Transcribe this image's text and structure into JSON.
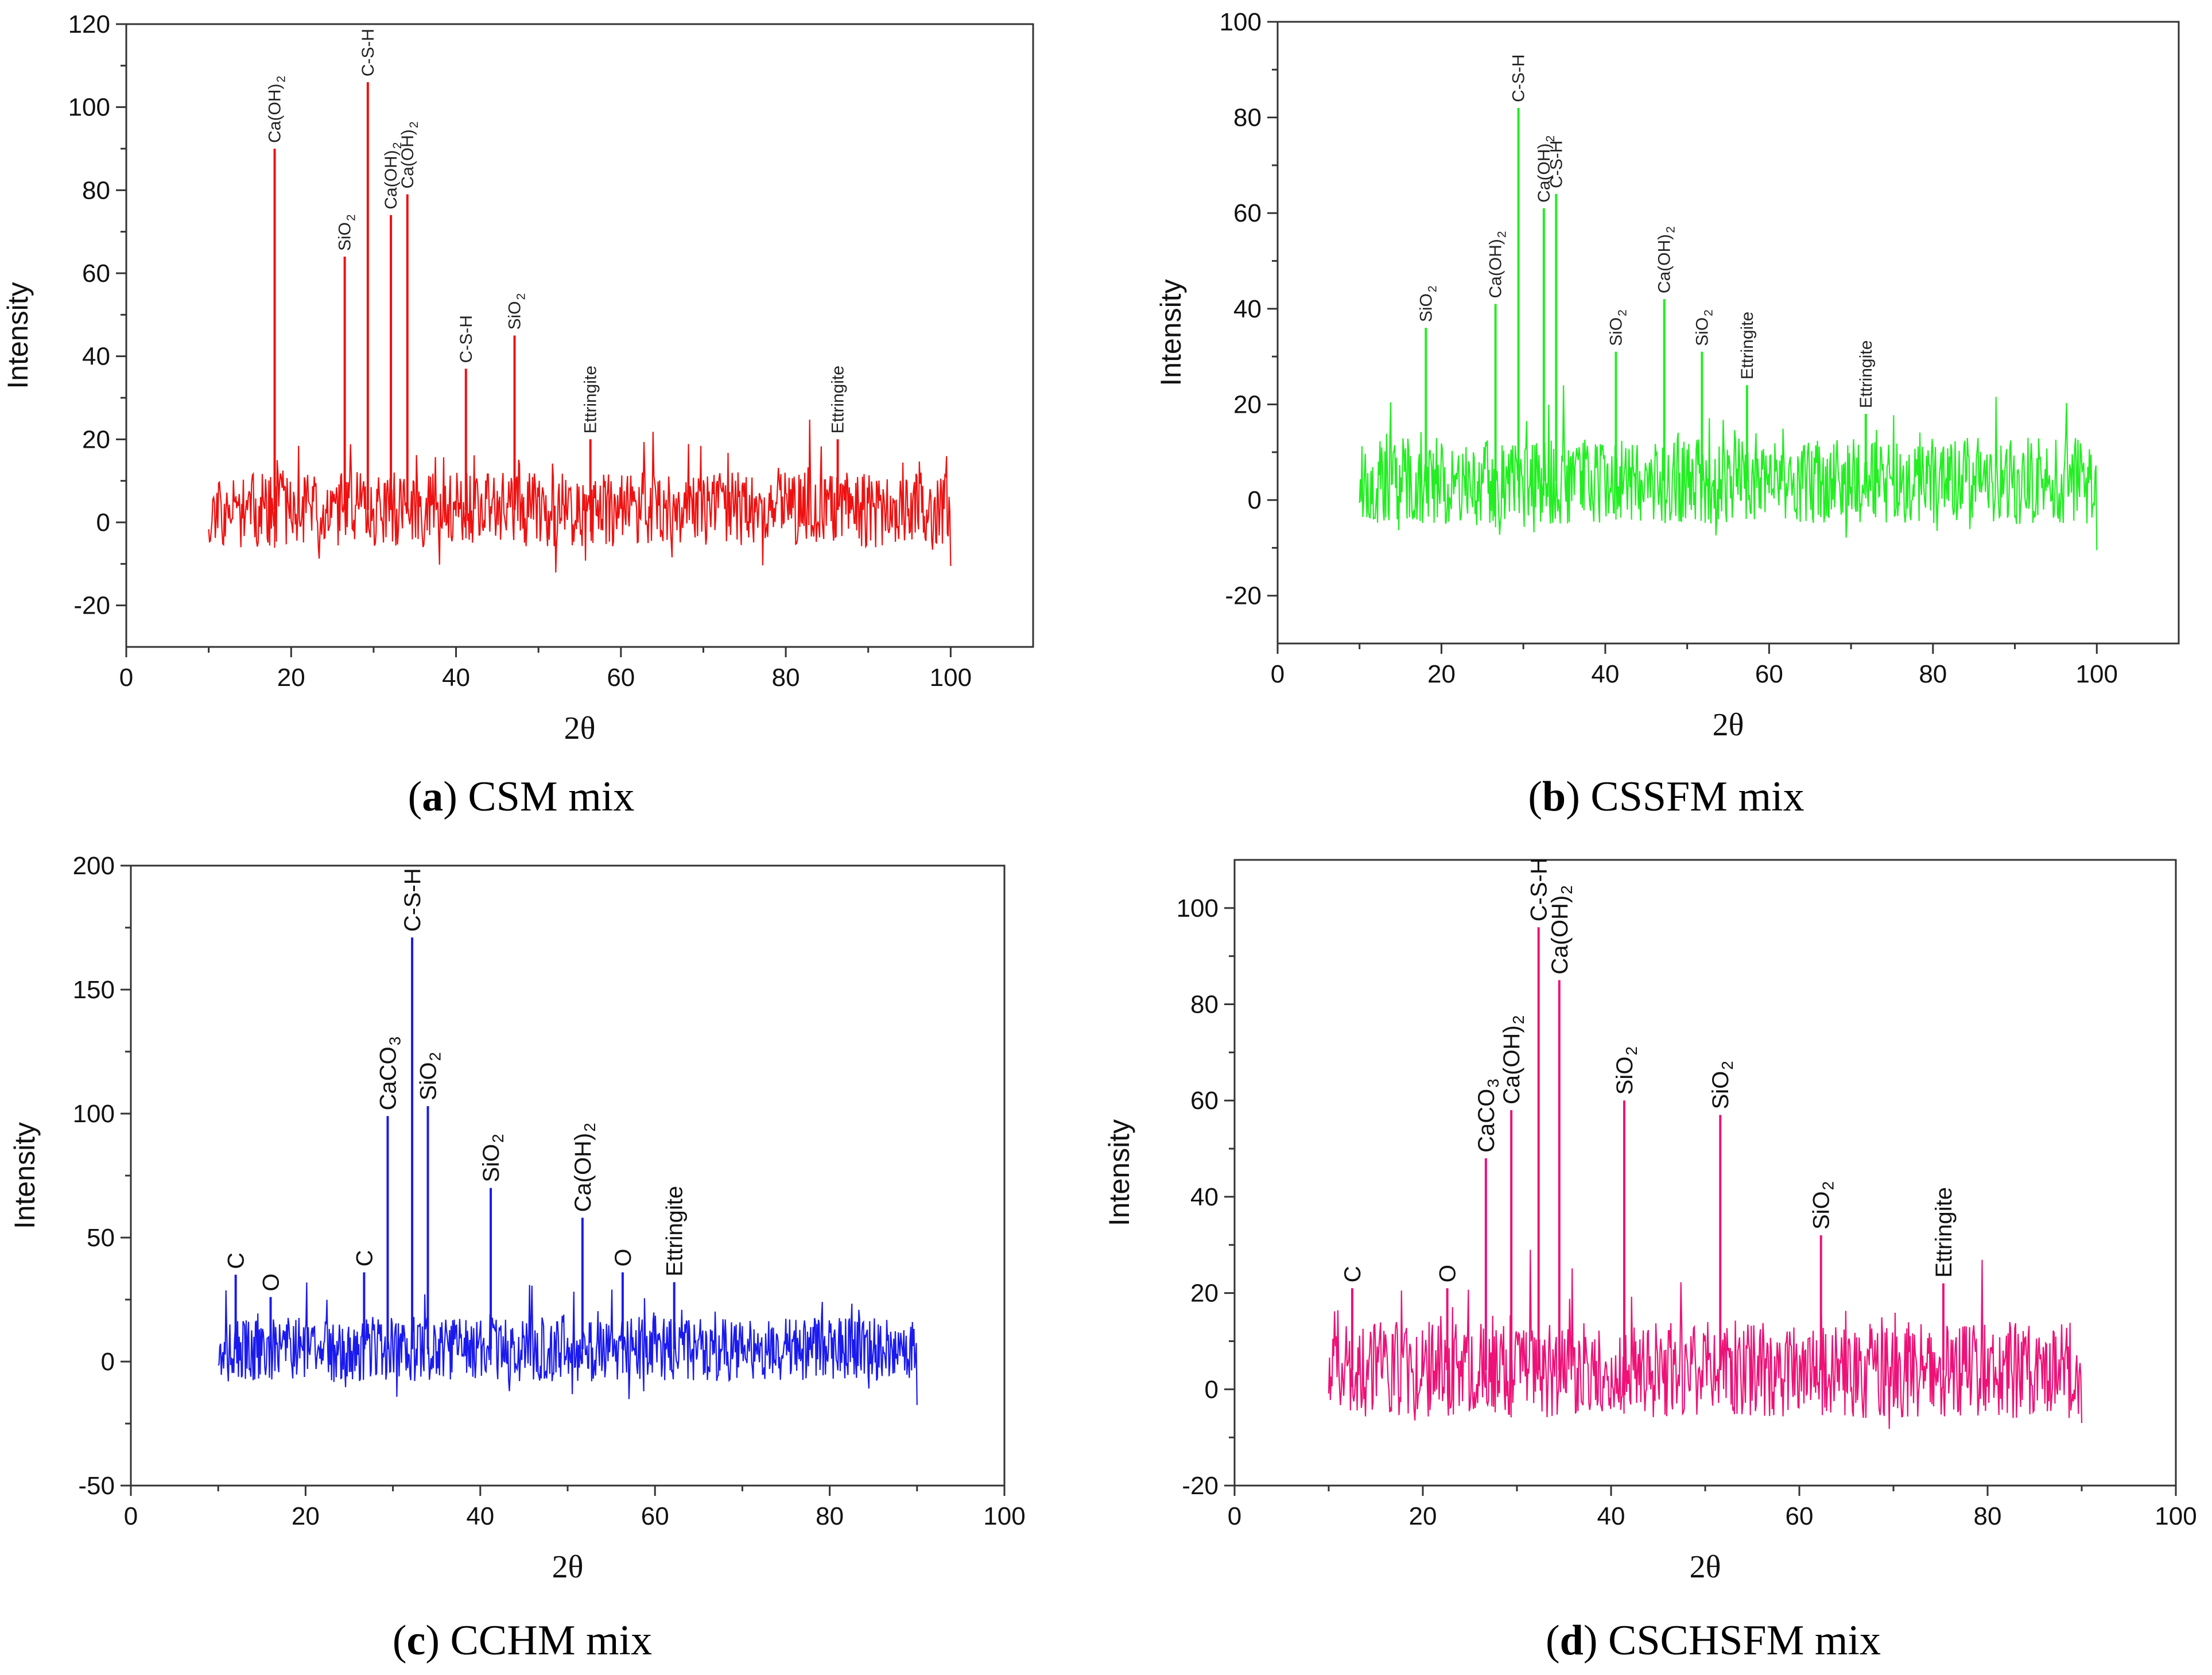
{
  "chart_data": [
    {
      "type": "line",
      "id": "a",
      "caption_letter": "a",
      "caption_text": "CSM mix",
      "color": "#ee1111",
      "xlabel": "2θ",
      "ylabel": "Intensity",
      "xlim": [
        0,
        110
      ],
      "ylim": [
        -30,
        120
      ],
      "xticks": [
        0,
        20,
        40,
        60,
        80,
        100
      ],
      "yticks": [
        -20,
        0,
        20,
        40,
        60,
        80,
        100,
        120
      ],
      "x_range": [
        10,
        100
      ],
      "baseline": 3,
      "noise": 9,
      "seed": 11,
      "peaks": [
        {
          "x": 18,
          "y": 90,
          "label": "Ca(OH)2"
        },
        {
          "x": 26.5,
          "y": 64,
          "label": "SiO2"
        },
        {
          "x": 29.3,
          "y": 106,
          "label": "C-S-H"
        },
        {
          "x": 32.1,
          "y": 74,
          "label": "Ca(OH)2"
        },
        {
          "x": 34.1,
          "y": 79,
          "label": "Ca(OH)2"
        },
        {
          "x": 41.2,
          "y": 37,
          "label": "C-S-H"
        },
        {
          "x": 47.1,
          "y": 45,
          "label": "SiO2"
        },
        {
          "x": 56.3,
          "y": 20,
          "label": "Ettringite"
        },
        {
          "x": 86.3,
          "y": 20,
          "label": "Ettringite"
        }
      ]
    },
    {
      "type": "line",
      "id": "b",
      "caption_letter": "b",
      "caption_text": "CSSFM mix",
      "color": "#22ee22",
      "xlabel": "2θ",
      "ylabel": "Intensity",
      "xlim": [
        0,
        110
      ],
      "ylim": [
        -30,
        100
      ],
      "xticks": [
        0,
        20,
        40,
        60,
        80,
        100
      ],
      "yticks": [
        -20,
        0,
        20,
        40,
        60,
        80,
        100
      ],
      "x_range": [
        10,
        100
      ],
      "baseline": 4,
      "noise": 9,
      "seed": 23,
      "peaks": [
        {
          "x": 18.1,
          "y": 36,
          "label": "SiO2"
        },
        {
          "x": 26.6,
          "y": 41,
          "label": "Ca(OH)2"
        },
        {
          "x": 29.4,
          "y": 82,
          "label": "C-S-H"
        },
        {
          "x": 32.5,
          "y": 61,
          "label": "Ca(OH)2"
        },
        {
          "x": 34.0,
          "y": 64,
          "label": "C-S-H"
        },
        {
          "x": 41.3,
          "y": 31,
          "label": "SiO2"
        },
        {
          "x": 47.2,
          "y": 42,
          "label": "Ca(OH)2"
        },
        {
          "x": 51.8,
          "y": 31,
          "label": "SiO2"
        },
        {
          "x": 57.3,
          "y": 24,
          "label": "Ettringite"
        },
        {
          "x": 71.8,
          "y": 18,
          "label": "Ettringite"
        }
      ]
    },
    {
      "type": "line",
      "id": "c",
      "caption_letter": "c",
      "caption_text": "CCHM mix",
      "color": "#1a1aee",
      "xlabel": "2θ",
      "ylabel": "Intensity",
      "xlim": [
        0,
        100
      ],
      "ylim": [
        -50,
        200
      ],
      "xticks": [
        0,
        20,
        40,
        60,
        80,
        100
      ],
      "yticks": [
        -50,
        0,
        50,
        100,
        150,
        200
      ],
      "x_range": [
        10,
        90
      ],
      "baseline": 5,
      "noise": 13,
      "seed": 37,
      "peaks": [
        {
          "x": 12,
          "y": 35,
          "label": "C"
        },
        {
          "x": 16,
          "y": 26,
          "label": "O"
        },
        {
          "x": 26.7,
          "y": 36,
          "label": "C"
        },
        {
          "x": 29.4,
          "y": 99,
          "label": "CaCO3"
        },
        {
          "x": 32.2,
          "y": 171,
          "label": "C-S-H"
        },
        {
          "x": 34.0,
          "y": 103,
          "label": "SiO2"
        },
        {
          "x": 41.2,
          "y": 70,
          "label": "SiO2"
        },
        {
          "x": 51.7,
          "y": 58,
          "label": "Ca(OH)2"
        },
        {
          "x": 56.3,
          "y": 36,
          "label": "O"
        },
        {
          "x": 62.2,
          "y": 32,
          "label": "Ettringite"
        }
      ]
    },
    {
      "type": "line",
      "id": "d",
      "caption_letter": "d",
      "caption_text": "CSCHSFM mix",
      "color": "#ee1177",
      "xlabel": "2θ",
      "ylabel": "Intensity",
      "xlim": [
        0,
        100
      ],
      "ylim": [
        -20,
        110
      ],
      "xticks": [
        0,
        20,
        40,
        60,
        80,
        100
      ],
      "yticks": [
        -20,
        0,
        20,
        40,
        60,
        80,
        100
      ],
      "x_range": [
        10,
        90
      ],
      "baseline": 4,
      "noise": 10,
      "seed": 53,
      "peaks": [
        {
          "x": 12.5,
          "y": 21,
          "label": "C"
        },
        {
          "x": 22.6,
          "y": 21,
          "label": "O"
        },
        {
          "x": 26.7,
          "y": 48,
          "label": "CaCO3"
        },
        {
          "x": 29.4,
          "y": 58,
          "label": "Ca(OH)2"
        },
        {
          "x": 32.3,
          "y": 96,
          "label": "C-S-H"
        },
        {
          "x": 34.5,
          "y": 85,
          "label": "Ca(OH)2"
        },
        {
          "x": 41.4,
          "y": 60,
          "label": "SiO2"
        },
        {
          "x": 51.6,
          "y": 57,
          "label": "SiO2"
        },
        {
          "x": 62.3,
          "y": 32,
          "label": "SiO2"
        },
        {
          "x": 75.3,
          "y": 22,
          "label": "Ettringite"
        }
      ]
    }
  ]
}
